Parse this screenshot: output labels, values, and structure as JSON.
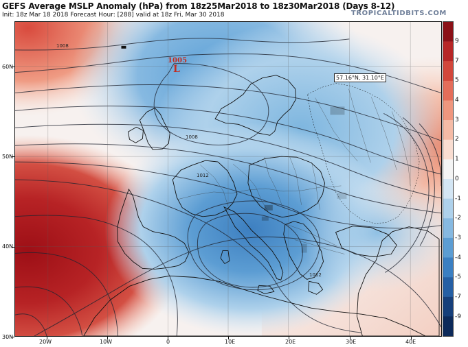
{
  "header": {
    "title": "GEFS Average MSLP Anomaly (hPa) from 18z25Mar2018 to 18z30Mar2018 (Days 8-12)",
    "init": "Init: 18z Mar 18 2018   Forecast Hour: [288]   valid at 18z Fri, Mar 30 2018",
    "brand": "TROPICALTIDBITS.COM"
  },
  "map": {
    "lat_labels": [
      "60N",
      "50N",
      "40N",
      "30N"
    ],
    "lon_labels": [
      "20W",
      "10W",
      "0",
      "10E",
      "20E",
      "30E",
      "40E"
    ],
    "low_center": {
      "value": "1005",
      "letter": "L"
    },
    "probe_coords": "57.16°N, 31.10°E",
    "contour_labels": [
      "1008",
      "1008",
      "1012",
      "1012"
    ]
  },
  "colorbar": {
    "labels": [
      "9",
      "7",
      "5",
      "4",
      "3",
      "2",
      "1",
      "0",
      "-1",
      "-2",
      "-3",
      "-4",
      "-5",
      "-7",
      "-9"
    ],
    "colors": [
      "#8b1117",
      "#b72727",
      "#d2473b",
      "#e46d5a",
      "#ef967e",
      "#f5bba6",
      "#f9ddd1",
      "#f4f4f4",
      "#d4e6f4",
      "#aed1eb",
      "#86b9e1",
      "#5c9dd3",
      "#3b7fc2",
      "#255fa4",
      "#163f7a",
      "#0d2a5a"
    ]
  }
}
